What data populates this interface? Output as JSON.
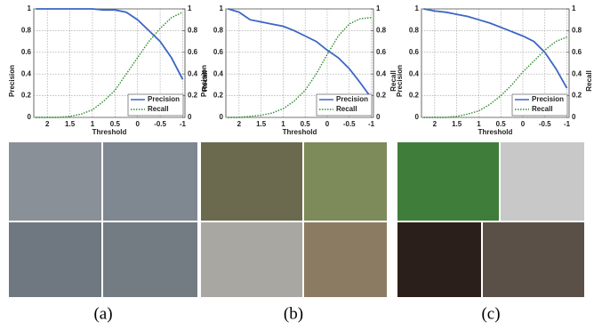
{
  "chart_data": [
    {
      "type": "line",
      "xlabel": "Threshold",
      "ylabel": "Precision",
      "y2label": "Recall",
      "x": [
        2.25,
        2,
        1.75,
        1.5,
        1.25,
        1,
        0.75,
        0.5,
        0.25,
        0,
        -0.25,
        -0.5,
        -0.75,
        -1
      ],
      "series": [
        {
          "name": "Precision",
          "color": "#3a66c4",
          "line_style": "solid",
          "axis": "y",
          "values": [
            1,
            1,
            1,
            1,
            1,
            1,
            0.99,
            0.99,
            0.97,
            0.9,
            0.8,
            0.7,
            0.55,
            0.35
          ]
        },
        {
          "name": "Recall",
          "color": "#2e8b2e",
          "line_style": "dotted",
          "axis": "y2",
          "values": [
            0,
            0,
            0,
            0.01,
            0.03,
            0.07,
            0.15,
            0.25,
            0.4,
            0.55,
            0.7,
            0.82,
            0.92,
            0.97
          ]
        }
      ],
      "xlim": [
        2.3,
        -1.05
      ],
      "xticks": [
        2,
        1.5,
        1,
        0.5,
        0,
        -0.5,
        -1
      ],
      "ylim": [
        0,
        1
      ],
      "yticks": [
        0,
        0.2,
        0.4,
        0.6,
        0.8,
        1
      ],
      "y2lim": [
        0,
        1
      ],
      "y2ticks": [
        0,
        0.2,
        0.4,
        0.6,
        0.8,
        1
      ],
      "grid": true,
      "legend": "lower-right"
    },
    {
      "type": "line",
      "xlabel": "Threshold",
      "ylabel": "Precision",
      "y2label": "Recall",
      "x": [
        2.25,
        2,
        1.75,
        1.5,
        1.25,
        1,
        0.75,
        0.5,
        0.25,
        0,
        -0.25,
        -0.5,
        -0.75,
        -1
      ],
      "series": [
        {
          "name": "Precision",
          "color": "#3a66c4",
          "line_style": "solid",
          "axis": "y",
          "values": [
            1,
            0.97,
            0.9,
            0.88,
            0.86,
            0.84,
            0.8,
            0.75,
            0.7,
            0.62,
            0.55,
            0.45,
            0.32,
            0.18
          ]
        },
        {
          "name": "Recall",
          "color": "#2e8b2e",
          "line_style": "dotted",
          "axis": "y2",
          "values": [
            0,
            0,
            0.01,
            0.02,
            0.04,
            0.08,
            0.15,
            0.25,
            0.4,
            0.58,
            0.75,
            0.86,
            0.91,
            0.92
          ]
        }
      ],
      "xlim": [
        2.3,
        -1.05
      ],
      "xticks": [
        2,
        1.5,
        1,
        0.5,
        0,
        -0.5,
        -1
      ],
      "ylim": [
        0,
        1
      ],
      "yticks": [
        0,
        0.2,
        0.4,
        0.6,
        0.8,
        1
      ],
      "y2lim": [
        0,
        1
      ],
      "y2ticks": [
        0,
        0.2,
        0.4,
        0.6,
        0.8,
        1
      ],
      "grid": true,
      "legend": "lower-right"
    },
    {
      "type": "line",
      "xlabel": "Threshold",
      "ylabel": "Precision",
      "y2label": "Recall",
      "x": [
        2.25,
        2,
        1.75,
        1.5,
        1.25,
        1,
        0.75,
        0.5,
        0.25,
        0,
        -0.25,
        -0.5,
        -0.75,
        -1
      ],
      "series": [
        {
          "name": "Precision",
          "color": "#3a66c4",
          "line_style": "solid",
          "axis": "y",
          "values": [
            1,
            0.98,
            0.97,
            0.95,
            0.93,
            0.9,
            0.87,
            0.83,
            0.79,
            0.75,
            0.7,
            0.6,
            0.45,
            0.27
          ]
        },
        {
          "name": "Recall",
          "color": "#2e8b2e",
          "line_style": "dotted",
          "axis": "y2",
          "values": [
            0,
            0,
            0,
            0.01,
            0.03,
            0.06,
            0.12,
            0.2,
            0.3,
            0.42,
            0.52,
            0.62,
            0.7,
            0.74
          ]
        }
      ],
      "xlim": [
        2.3,
        -1.05
      ],
      "xticks": [
        2,
        1.5,
        1,
        0.5,
        0,
        -0.5,
        -1
      ],
      "ylim": [
        0,
        1
      ],
      "yticks": [
        0,
        0.2,
        0.4,
        0.6,
        0.8,
        1
      ],
      "y2lim": [
        0,
        1
      ],
      "y2ticks": [
        0,
        0.2,
        0.4,
        0.6,
        0.8,
        1
      ],
      "grid": true,
      "legend": "lower-right"
    }
  ],
  "figure": {
    "panel_labels": [
      "(a)",
      "(b)",
      "(c)"
    ]
  }
}
